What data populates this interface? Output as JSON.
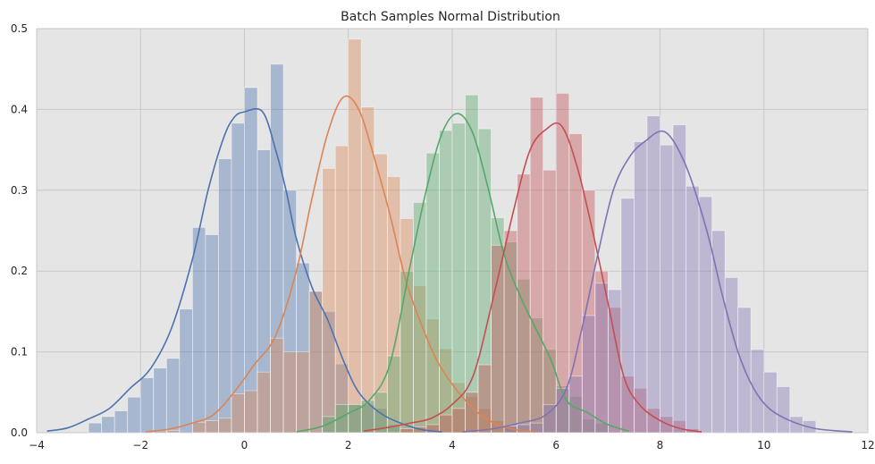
{
  "chart_data": {
    "type": "histogram",
    "title": "Batch Samples Normal Distribution",
    "xlabel": "",
    "ylabel": "",
    "xlim": [
      -4.0,
      12.0
    ],
    "ylim": [
      0,
      0.5
    ],
    "x_ticks": [
      -4,
      -2,
      0,
      2,
      4,
      6,
      8,
      10,
      12
    ],
    "x_tick_labels": [
      "−4",
      "−2",
      "0",
      "2",
      "4",
      "6",
      "8",
      "10",
      "12"
    ],
    "y_ticks": [
      0.0,
      0.1,
      0.2,
      0.3,
      0.4,
      0.5
    ],
    "y_tick_labels": [
      "0.0",
      "0.1",
      "0.2",
      "0.3",
      "0.4",
      "0.5"
    ],
    "grid": true,
    "background": "#e5e5e5",
    "grid_color": "#c8c8c8",
    "series": [
      {
        "color": "#4c72b0",
        "mean": 0,
        "bin_width": 0.25,
        "hist": [
          [
            -3.0,
            0.012
          ],
          [
            -2.75,
            0.02
          ],
          [
            -2.5,
            0.027
          ],
          [
            -2.25,
            0.044
          ],
          [
            -2.0,
            0.068
          ],
          [
            -1.75,
            0.08
          ],
          [
            -1.5,
            0.092
          ],
          [
            -1.25,
            0.153
          ],
          [
            -1.0,
            0.254
          ],
          [
            -0.75,
            0.245
          ],
          [
            -0.5,
            0.339
          ],
          [
            -0.25,
            0.383
          ],
          [
            0.0,
            0.427
          ],
          [
            0.25,
            0.35
          ],
          [
            0.5,
            0.456
          ],
          [
            0.75,
            0.3
          ],
          [
            1.0,
            0.21
          ],
          [
            1.25,
            0.175
          ],
          [
            1.5,
            0.15
          ],
          [
            1.75,
            0.085
          ],
          [
            2.0,
            0.035
          ],
          [
            2.25,
            0.035
          ],
          [
            2.5,
            0.03
          ],
          [
            2.75,
            0.01
          ]
        ],
        "kde": [
          [
            -3.8,
            0.002
          ],
          [
            -3.4,
            0.006
          ],
          [
            -3.0,
            0.017
          ],
          [
            -2.6,
            0.03
          ],
          [
            -2.2,
            0.055
          ],
          [
            -1.8,
            0.08
          ],
          [
            -1.4,
            0.13
          ],
          [
            -1.0,
            0.215
          ],
          [
            -0.7,
            0.3
          ],
          [
            -0.4,
            0.365
          ],
          [
            -0.2,
            0.39
          ],
          [
            0.0,
            0.397
          ],
          [
            0.35,
            0.397
          ],
          [
            0.6,
            0.35
          ],
          [
            0.8,
            0.3
          ],
          [
            1.0,
            0.24
          ],
          [
            1.3,
            0.18
          ],
          [
            1.6,
            0.14
          ],
          [
            1.9,
            0.09
          ],
          [
            2.2,
            0.05
          ],
          [
            2.6,
            0.025
          ],
          [
            3.0,
            0.012
          ],
          [
            3.4,
            0.004
          ],
          [
            3.8,
            0.001
          ]
        ]
      },
      {
        "color": "#dd8452",
        "mean": 2,
        "bin_width": 0.25,
        "hist": [
          [
            -1.5,
            0.003
          ],
          [
            -1.0,
            0.013
          ],
          [
            -0.75,
            0.015
          ],
          [
            -0.5,
            0.018
          ],
          [
            -0.25,
            0.048
          ],
          [
            0.0,
            0.052
          ],
          [
            0.25,
            0.075
          ],
          [
            0.5,
            0.117
          ],
          [
            0.75,
            0.1
          ],
          [
            1.0,
            0.1
          ],
          [
            1.25,
            0.175
          ],
          [
            1.5,
            0.327
          ],
          [
            1.75,
            0.355
          ],
          [
            2.0,
            0.487
          ],
          [
            2.25,
            0.403
          ],
          [
            2.5,
            0.345
          ],
          [
            2.75,
            0.317
          ],
          [
            3.0,
            0.265
          ],
          [
            3.25,
            0.182
          ],
          [
            3.5,
            0.141
          ],
          [
            3.75,
            0.104
          ],
          [
            4.0,
            0.062
          ],
          [
            4.25,
            0.045
          ],
          [
            4.5,
            0.03
          ],
          [
            4.75,
            0.015
          ],
          [
            5.0,
            0.008
          ]
        ],
        "kde": [
          [
            -1.9,
            0.001
          ],
          [
            -1.4,
            0.005
          ],
          [
            -1.0,
            0.012
          ],
          [
            -0.6,
            0.022
          ],
          [
            -0.2,
            0.05
          ],
          [
            0.2,
            0.085
          ],
          [
            0.6,
            0.12
          ],
          [
            1.0,
            0.2
          ],
          [
            1.3,
            0.29
          ],
          [
            1.6,
            0.37
          ],
          [
            1.9,
            0.415
          ],
          [
            2.2,
            0.4
          ],
          [
            2.5,
            0.34
          ],
          [
            2.8,
            0.27
          ],
          [
            3.1,
            0.19
          ],
          [
            3.4,
            0.135
          ],
          [
            3.7,
            0.09
          ],
          [
            4.0,
            0.06
          ],
          [
            4.4,
            0.03
          ],
          [
            4.8,
            0.012
          ],
          [
            5.2,
            0.004
          ],
          [
            5.6,
            0.001
          ]
        ]
      },
      {
        "color": "#55a868",
        "mean": 4,
        "bin_width": 0.25,
        "hist": [
          [
            1.5,
            0.02
          ],
          [
            1.75,
            0.035
          ],
          [
            2.0,
            0.035
          ],
          [
            2.25,
            0.04
          ],
          [
            2.5,
            0.05
          ],
          [
            2.75,
            0.095
          ],
          [
            3.0,
            0.2
          ],
          [
            3.25,
            0.285
          ],
          [
            3.5,
            0.346
          ],
          [
            3.75,
            0.374
          ],
          [
            4.0,
            0.383
          ],
          [
            4.25,
            0.418
          ],
          [
            4.5,
            0.376
          ],
          [
            4.75,
            0.266
          ],
          [
            5.0,
            0.236
          ],
          [
            5.25,
            0.19
          ],
          [
            5.5,
            0.142
          ],
          [
            5.75,
            0.103
          ],
          [
            6.0,
            0.058
          ],
          [
            6.25,
            0.045
          ],
          [
            6.5,
            0.017
          ],
          [
            6.75,
            0.012
          ]
        ],
        "kde": [
          [
            1.0,
            0.001
          ],
          [
            1.5,
            0.008
          ],
          [
            2.0,
            0.024
          ],
          [
            2.4,
            0.04
          ],
          [
            2.8,
            0.085
          ],
          [
            3.2,
            0.21
          ],
          [
            3.5,
            0.3
          ],
          [
            3.8,
            0.37
          ],
          [
            4.1,
            0.395
          ],
          [
            4.4,
            0.37
          ],
          [
            4.7,
            0.3
          ],
          [
            5.0,
            0.22
          ],
          [
            5.3,
            0.17
          ],
          [
            5.6,
            0.13
          ],
          [
            5.9,
            0.09
          ],
          [
            6.2,
            0.04
          ],
          [
            6.6,
            0.025
          ],
          [
            7.0,
            0.01
          ],
          [
            7.4,
            0.002
          ]
        ]
      },
      {
        "color": "#c44e52",
        "mean": 6,
        "bin_width": 0.25,
        "hist": [
          [
            3.0,
            0.005
          ],
          [
            3.25,
            0.007
          ],
          [
            3.5,
            0.01
          ],
          [
            3.75,
            0.022
          ],
          [
            4.0,
            0.03
          ],
          [
            4.25,
            0.05
          ],
          [
            4.5,
            0.084
          ],
          [
            4.75,
            0.232
          ],
          [
            5.0,
            0.25
          ],
          [
            5.25,
            0.32
          ],
          [
            5.5,
            0.415
          ],
          [
            5.75,
            0.325
          ],
          [
            6.0,
            0.42
          ],
          [
            6.25,
            0.37
          ],
          [
            6.5,
            0.3
          ],
          [
            6.75,
            0.2
          ],
          [
            7.0,
            0.155
          ],
          [
            7.25,
            0.07
          ],
          [
            7.5,
            0.055
          ],
          [
            7.75,
            0.03
          ],
          [
            8.0,
            0.02
          ],
          [
            8.25,
            0.015
          ],
          [
            8.5,
            0.005
          ]
        ],
        "kde": [
          [
            2.3,
            0.002
          ],
          [
            2.8,
            0.007
          ],
          [
            3.2,
            0.012
          ],
          [
            3.6,
            0.018
          ],
          [
            4.0,
            0.035
          ],
          [
            4.4,
            0.07
          ],
          [
            4.8,
            0.17
          ],
          [
            5.2,
            0.28
          ],
          [
            5.5,
            0.35
          ],
          [
            5.8,
            0.375
          ],
          [
            6.1,
            0.38
          ],
          [
            6.4,
            0.33
          ],
          [
            6.7,
            0.25
          ],
          [
            7.0,
            0.16
          ],
          [
            7.3,
            0.07
          ],
          [
            7.6,
            0.035
          ],
          [
            8.0,
            0.015
          ],
          [
            8.4,
            0.005
          ],
          [
            8.8,
            0.001
          ]
        ]
      },
      {
        "color": "#8172b3",
        "mean": 8,
        "bin_width": 0.25,
        "hist": [
          [
            5.0,
            0.008
          ],
          [
            5.25,
            0.01
          ],
          [
            5.5,
            0.012
          ],
          [
            5.75,
            0.035
          ],
          [
            6.0,
            0.055
          ],
          [
            6.25,
            0.07
          ],
          [
            6.5,
            0.145
          ],
          [
            6.75,
            0.185
          ],
          [
            7.0,
            0.177
          ],
          [
            7.25,
            0.29
          ],
          [
            7.5,
            0.36
          ],
          [
            7.75,
            0.392
          ],
          [
            8.0,
            0.356
          ],
          [
            8.25,
            0.381
          ],
          [
            8.5,
            0.305
          ],
          [
            8.75,
            0.292
          ],
          [
            9.0,
            0.25
          ],
          [
            9.25,
            0.192
          ],
          [
            9.5,
            0.155
          ],
          [
            9.75,
            0.103
          ],
          [
            10.0,
            0.075
          ],
          [
            10.25,
            0.057
          ],
          [
            10.5,
            0.02
          ],
          [
            10.75,
            0.015
          ]
        ],
        "kde": [
          [
            4.2,
            0.001
          ],
          [
            4.8,
            0.005
          ],
          [
            5.3,
            0.012
          ],
          [
            5.8,
            0.022
          ],
          [
            6.2,
            0.055
          ],
          [
            6.5,
            0.13
          ],
          [
            6.8,
            0.22
          ],
          [
            7.1,
            0.3
          ],
          [
            7.4,
            0.34
          ],
          [
            7.7,
            0.36
          ],
          [
            8.1,
            0.372
          ],
          [
            8.5,
            0.33
          ],
          [
            8.9,
            0.25
          ],
          [
            9.2,
            0.17
          ],
          [
            9.5,
            0.1
          ],
          [
            9.8,
            0.055
          ],
          [
            10.1,
            0.03
          ],
          [
            10.5,
            0.015
          ],
          [
            11.0,
            0.005
          ],
          [
            11.7,
            0.001
          ]
        ]
      }
    ]
  }
}
